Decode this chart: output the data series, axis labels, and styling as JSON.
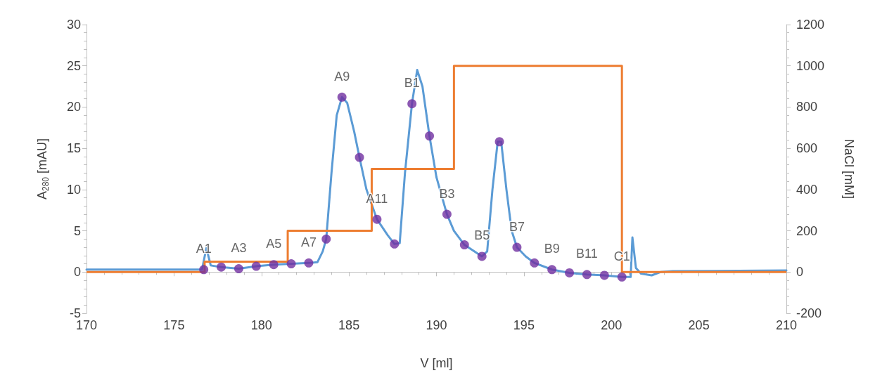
{
  "chart_data": {
    "type": "line",
    "xlabel": "V [ml]",
    "ylabel": "A$_{280}$ [mAU]",
    "y2label": "NaCl [mM]",
    "xlim": [
      170,
      210
    ],
    "xticks": [
      170,
      175,
      180,
      185,
      190,
      195,
      200,
      205,
      210
    ],
    "ylim": [
      -5,
      30
    ],
    "yticks": [
      -5,
      0,
      5,
      10,
      15,
      20,
      25,
      30
    ],
    "y2lim": [
      -200,
      1200
    ],
    "y2ticks": [
      -200,
      0,
      200,
      400,
      600,
      800,
      {
        "value": 1000,
        "label": "1000"
      },
      {
        "value": 1200,
        "label": "1200"
      }
    ],
    "series": [
      {
        "color": "#5b9bd5",
        "marker": "none",
        "x": [
          170,
          176.6,
          176.85,
          177.1,
          177.7,
          178.7,
          179.7,
          180.7,
          181.7,
          182.7,
          183.2,
          183.5,
          183.7,
          184.0,
          184.3,
          184.6,
          184.9,
          185.3,
          185.6,
          186.0,
          186.6,
          187.2,
          187.6,
          187.9,
          188.2,
          188.6,
          188.9,
          189.2,
          189.6,
          190.0,
          190.6,
          191.0,
          191.6,
          192.1,
          192.6,
          192.9,
          193.2,
          193.5,
          193.7,
          194.0,
          194.3,
          194.6,
          195.1,
          195.6,
          196.6,
          197.6,
          198.6,
          199.6,
          200.6,
          201.1,
          201.2,
          201.4,
          201.7,
          202.3,
          202.8,
          203.5,
          210
        ],
        "values": [
          0.3,
          0.3,
          2.9,
          0.8,
          0.6,
          0.4,
          0.7,
          0.9,
          1.0,
          1.1,
          1.2,
          2.5,
          4.0,
          12,
          19,
          21.2,
          20.5,
          17,
          13.9,
          10,
          6.4,
          4.5,
          3.4,
          3.5,
          12,
          20.4,
          24.5,
          22.5,
          16.5,
          11.5,
          7.0,
          5.0,
          3.3,
          2.6,
          1.9,
          2.5,
          10,
          15.8,
          15.8,
          10,
          5,
          3.0,
          1.9,
          1.1,
          0.3,
          -0.1,
          -0.3,
          -0.4,
          -0.6,
          -0.6,
          4.2,
          0.5,
          -0.2,
          -0.4,
          0,
          0.1,
          0.2
        ]
      },
      {
        "type": "step",
        "axis": "y2",
        "color": "#ed7d31",
        "marker": "none",
        "x": [
          170,
          176.75,
          181.5,
          186.3,
          191.0,
          200.6,
          210
        ],
        "values": [
          0,
          50,
          200,
          500,
          1000,
          0,
          0
        ]
      },
      {
        "type": "scatter",
        "color": "#7030a0",
        "marker": "circle",
        "x": [
          176.7,
          177.7,
          178.7,
          179.7,
          180.7,
          181.7,
          182.7,
          183.7,
          184.6,
          185.6,
          186.6,
          187.6,
          188.6,
          189.6,
          190.6,
          191.6,
          192.6,
          193.6,
          194.6,
          195.6,
          196.6,
          197.6,
          198.6,
          199.6,
          200.6
        ],
        "values": [
          0.3,
          0.6,
          0.4,
          0.7,
          0.9,
          1.0,
          1.1,
          4.0,
          21.2,
          13.9,
          6.4,
          3.4,
          20.4,
          16.5,
          7.0,
          3.3,
          1.9,
          15.8,
          3.0,
          1.1,
          0.3,
          -0.1,
          -0.3,
          -0.4,
          -0.6
        ],
        "value_labels": [
          "A1",
          null,
          "A3",
          null,
          "A5",
          null,
          "A7",
          null,
          "A9",
          null,
          "A11",
          null,
          "B1",
          null,
          "B3",
          null,
          "B5",
          null,
          "B7",
          null,
          "B9",
          null,
          "B11",
          null,
          "C1"
        ]
      }
    ]
  }
}
